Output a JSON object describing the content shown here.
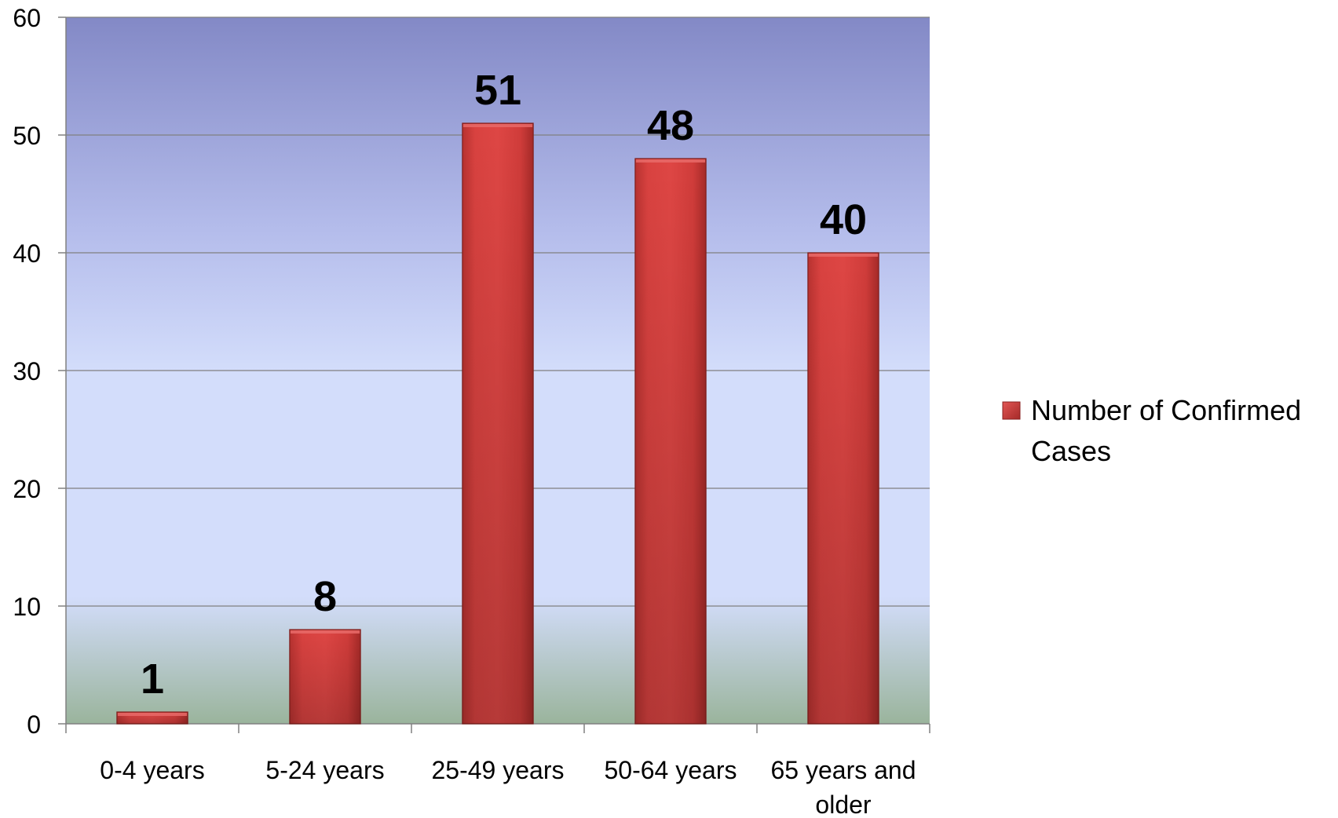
{
  "chart_data": {
    "type": "bar",
    "title": "",
    "xlabel": "",
    "ylabel": "",
    "ylim": [
      0,
      60
    ],
    "yticks": [
      0,
      10,
      20,
      30,
      40,
      50,
      60
    ],
    "grid": true,
    "legend_position": "right",
    "categories": [
      [
        "0-4 years"
      ],
      [
        "5-24 years"
      ],
      [
        "25-49 years"
      ],
      [
        "50-64 years"
      ],
      [
        "65 years and",
        "older"
      ]
    ],
    "series": [
      {
        "name": "Number of Confirmed Cases",
        "values": [
          1,
          8,
          51,
          48,
          40
        ],
        "data_labels": [
          "1",
          "8",
          "51",
          "48",
          "40"
        ],
        "color": "#d63c3a"
      }
    ],
    "legend": {
      "lines": [
        "Number of Confirmed",
        "Cases"
      ]
    },
    "colors": {
      "plot_top": "#8389c6",
      "plot_mid": "#d3ddfb",
      "plot_bottom": "#9ab49c",
      "bar": "#d63c3a",
      "bar_dark": "#a52a28",
      "gridline": "#808080",
      "axis": "#808080",
      "text": "#000000"
    }
  }
}
